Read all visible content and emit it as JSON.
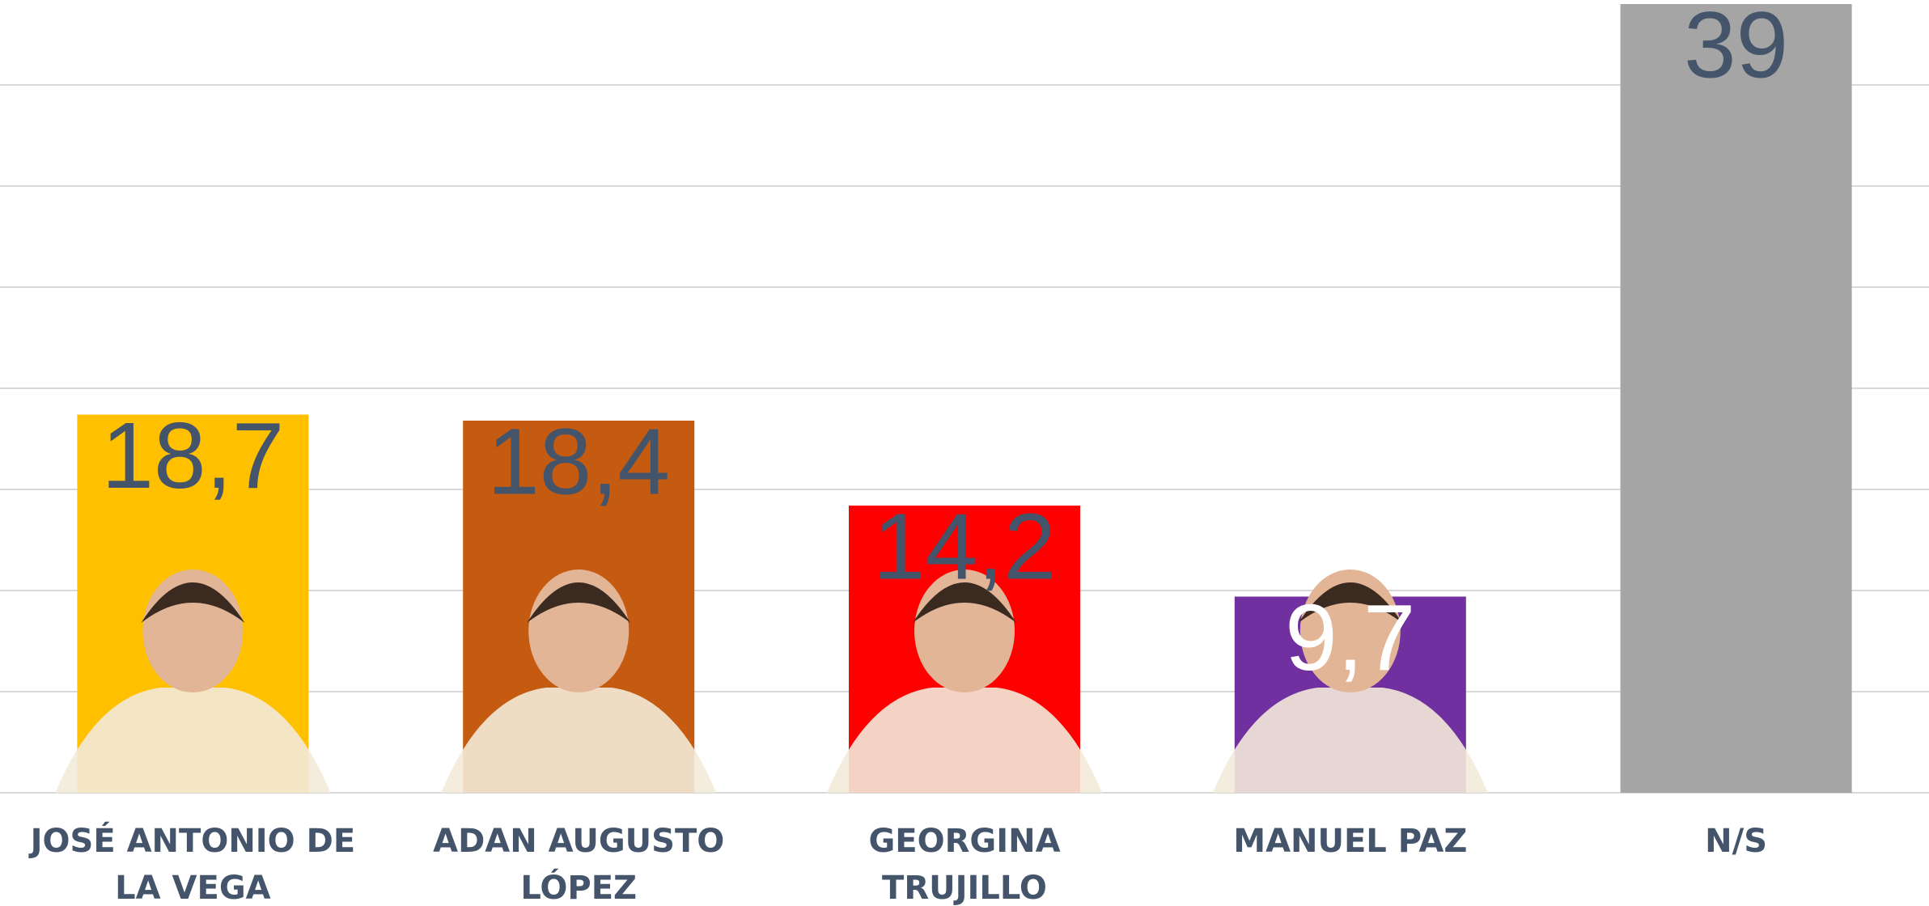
{
  "chart_data": {
    "type": "bar",
    "categories": [
      "JOSÉ ANTONIO DE LA VEGA",
      "ADAN AUGUSTO LÓPEZ",
      "GEORGINA TRUJILLO",
      "MANUEL PAZ",
      "N/S"
    ],
    "values": [
      18.7,
      18.4,
      14.2,
      9.7,
      39
    ],
    "value_labels": [
      "18,7",
      "18,4",
      "14,2",
      "9,7",
      "39"
    ],
    "colors": [
      "#ffc000",
      "#c55a11",
      "#ff0000",
      "#7030a0",
      "#a5a5a5"
    ],
    "value_label_colors": [
      "#44546a",
      "#44546a",
      "#44546a",
      "#ffffff",
      "#44546a"
    ],
    "ylim": [
      0,
      39.2
    ],
    "yticks": [
      0,
      5,
      10,
      15,
      20,
      25,
      30,
      35
    ],
    "grid": true
  }
}
